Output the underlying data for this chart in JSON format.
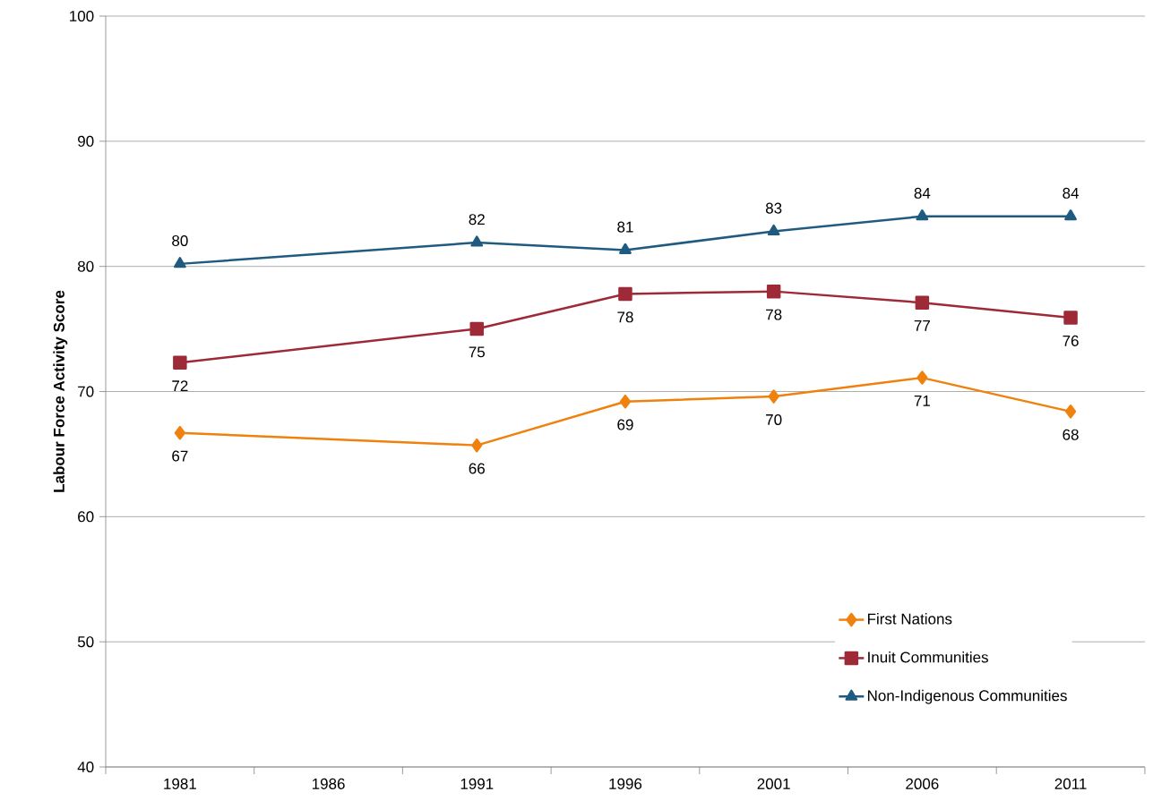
{
  "chart_data": {
    "type": "line",
    "ylabel": "Labour Force Activity Score",
    "categories": [
      "1981",
      "1986",
      "1991",
      "1996",
      "2001",
      "2006",
      "2011"
    ],
    "ylim": [
      40,
      100
    ],
    "yticks": [
      40,
      50,
      60,
      70,
      80,
      90,
      100
    ],
    "grid": "y",
    "legend": "bottom right",
    "series": [
      {
        "name": "First Nations",
        "color": "#ef820f",
        "marker": "diamond",
        "values": [
          66.7,
          null,
          65.7,
          69.2,
          69.6,
          71.1,
          68.4
        ],
        "value_labels": [
          "67",
          null,
          "66",
          "69",
          "70",
          "71",
          "68"
        ]
      },
      {
        "name": "Inuit Communities",
        "color": "#9e2a38",
        "marker": "square",
        "values": [
          72.3,
          null,
          75.0,
          77.8,
          78.0,
          77.1,
          75.9
        ],
        "value_labels": [
          "72",
          null,
          "75",
          "78",
          "78",
          "77",
          "76"
        ]
      },
      {
        "name": "Non-Indigenous Communities",
        "color": "#1f5b80",
        "marker": "triangle",
        "values": [
          80.2,
          null,
          81.9,
          81.3,
          82.8,
          84.0,
          84.0
        ],
        "value_labels": [
          "80",
          null,
          "82",
          "81",
          "83",
          "84",
          "84"
        ]
      }
    ]
  }
}
